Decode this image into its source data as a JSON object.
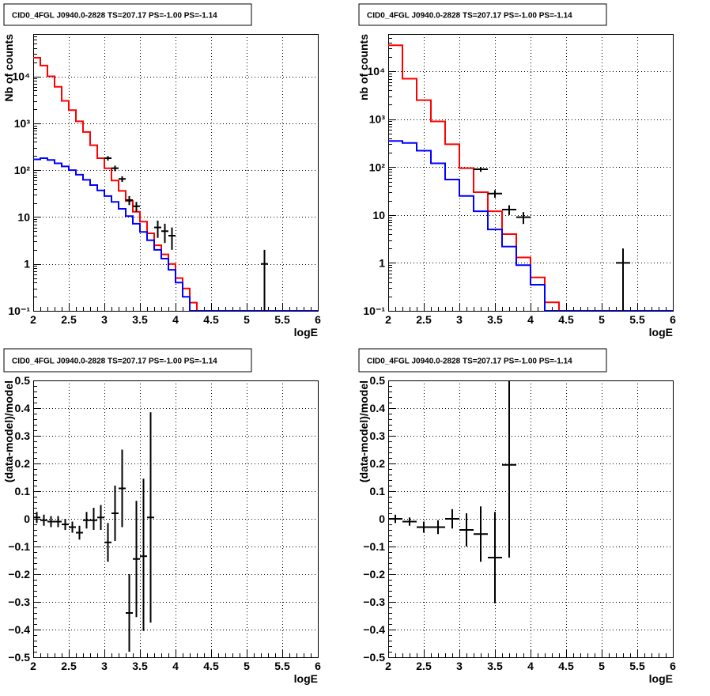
{
  "chart_data": [
    {
      "type": "line",
      "title": "CID0_4FGL J0940.0-2828 TS=207.17 PS=-1.00 PS=-1.14",
      "xlabel": "logE",
      "ylabel": "Nb of counts",
      "xlim": [
        2,
        6
      ],
      "ylim": [
        0.1,
        80000
      ],
      "log_y": true,
      "grid": true,
      "x_ticks": [
        "2",
        "2.5",
        "3",
        "3.5",
        "4",
        "4.5",
        "5",
        "5.5",
        "6"
      ],
      "y_ticks": [
        "10⁻¹",
        "1",
        "10",
        "10²",
        "10³",
        "10⁴"
      ],
      "bin_edges": [
        2.0,
        2.1,
        2.2,
        2.3,
        2.4,
        2.5,
        2.6,
        2.7,
        2.8,
        2.9,
        3.0,
        3.1,
        3.2,
        3.3,
        3.4,
        3.5,
        3.6,
        3.7,
        3.8,
        3.9,
        4.0,
        4.1,
        4.2,
        4.3,
        4.4,
        4.5,
        4.6,
        4.7,
        4.8,
        4.9,
        5.0,
        5.1,
        5.2,
        5.3,
        5.4,
        5.5,
        5.6,
        5.7,
        5.8,
        5.9,
        6.0
      ],
      "series": [
        {
          "color": "#ff0000",
          "values": [
            25000,
            17000,
            10000,
            6000,
            3000,
            1900,
            1100,
            650,
            340,
            180,
            110,
            60,
            36,
            22,
            13,
            8,
            4.5,
            2.5,
            1.6,
            1.0,
            0.5,
            0.3,
            0.15,
            0.1,
            0.1,
            0.1,
            0.1,
            0.1,
            0.1,
            0.1,
            0.1,
            0.1,
            0.1,
            0.1,
            0.1,
            0.1,
            0.1,
            0.1,
            0.1,
            0.1
          ]
        },
        {
          "color": "#0000ff",
          "values": [
            170,
            180,
            165,
            140,
            120,
            100,
            80,
            62,
            48,
            37,
            28,
            21,
            15,
            10.5,
            7.2,
            4.8,
            3.2,
            2.0,
            1.3,
            0.75,
            0.4,
            0.2,
            0.1,
            0.1,
            0.1,
            0.1,
            0.1,
            0.1,
            0.1,
            0.1,
            0.1,
            0.1,
            0.1,
            0.1,
            0.1,
            0.1,
            0.1,
            0.1,
            0.1,
            0.1
          ]
        }
      ],
      "points": [
        {
          "x": 3.05,
          "y": 180,
          "xerr": 0.05,
          "ylo": 160,
          "yhi": 200
        },
        {
          "x": 3.15,
          "y": 110,
          "xerr": 0.05,
          "ylo": 95,
          "yhi": 125
        },
        {
          "x": 3.25,
          "y": 65,
          "xerr": 0.05,
          "ylo": 56,
          "yhi": 74
        },
        {
          "x": 3.35,
          "y": 23,
          "xerr": 0.05,
          "ylo": 18,
          "yhi": 28
        },
        {
          "x": 3.45,
          "y": 17,
          "xerr": 0.05,
          "ylo": 13,
          "yhi": 21
        },
        {
          "x": 3.75,
          "y": 6,
          "xerr": 0.05,
          "ylo": 3.6,
          "yhi": 8.4
        },
        {
          "x": 3.85,
          "y": 5,
          "xerr": 0.05,
          "ylo": 2.8,
          "yhi": 7.2
        },
        {
          "x": 3.95,
          "y": 4,
          "xerr": 0.05,
          "ylo": 2.0,
          "yhi": 6.0
        },
        {
          "x": 5.25,
          "y": 1,
          "xerr": 0.05,
          "ylo": 0.1,
          "yhi": 2.0
        }
      ]
    },
    {
      "type": "line",
      "title": "CID0_4FGL J0940.0-2828 TS=207.17 PS=-1.00 PS=-1.14",
      "xlabel": "logE",
      "ylabel": "nb of counts",
      "xlim": [
        2,
        6
      ],
      "ylim": [
        0.1,
        60000
      ],
      "log_y": true,
      "grid": true,
      "x_ticks": [
        "2",
        "2.5",
        "3",
        "3.5",
        "4",
        "4.5",
        "5",
        "5.5",
        "6"
      ],
      "y_ticks": [
        "10⁻¹",
        "1",
        "10",
        "10²",
        "10³",
        "10⁴"
      ],
      "bin_edges": [
        2.0,
        2.2,
        2.4,
        2.6,
        2.8,
        3.0,
        3.2,
        3.4,
        3.6,
        3.8,
        4.0,
        4.2,
        4.4,
        4.6,
        4.8,
        5.0,
        5.2,
        5.4,
        5.6,
        5.8,
        6.0
      ],
      "series": [
        {
          "color": "#ff0000",
          "values": [
            35000,
            7000,
            2500,
            900,
            300,
            95,
            30,
            12,
            4.0,
            1.3,
            0.5,
            0.15,
            0.1,
            0.1,
            0.1,
            0.1,
            0.1,
            0.1,
            0.1,
            0.1
          ]
        },
        {
          "color": "#0000ff",
          "values": [
            350,
            320,
            220,
            120,
            55,
            25,
            12,
            5.0,
            2.2,
            0.9,
            0.35,
            0.1,
            0.1,
            0.1,
            0.1,
            0.1,
            0.1,
            0.1,
            0.1,
            0.1
          ]
        }
      ],
      "points": [
        {
          "x": 3.3,
          "y": 90,
          "xerr": 0.1,
          "ylo": 80,
          "yhi": 100
        },
        {
          "x": 3.5,
          "y": 28,
          "xerr": 0.1,
          "ylo": 23,
          "yhi": 33
        },
        {
          "x": 3.7,
          "y": 13,
          "xerr": 0.1,
          "ylo": 10,
          "yhi": 16
        },
        {
          "x": 3.9,
          "y": 9,
          "xerr": 0.1,
          "ylo": 6.5,
          "yhi": 11.5
        },
        {
          "x": 5.3,
          "y": 1,
          "xerr": 0.1,
          "ylo": 0.1,
          "yhi": 2.0
        }
      ]
    },
    {
      "type": "scatter",
      "title": "CID0_4FGL J0940.0-2828 TS=207.17 PS=-1.00 PS=-1.14",
      "xlabel": "logE",
      "ylabel": "(data-model)/model",
      "xlim": [
        2,
        6
      ],
      "ylim": [
        -0.5,
        0.5
      ],
      "log_y": false,
      "grid": true,
      "x_ticks": [
        "2",
        "2.5",
        "3",
        "3.5",
        "4",
        "4.5",
        "5",
        "5.5",
        "6"
      ],
      "y_ticks": [
        "−0.5",
        "−0.4",
        "−0.3",
        "−0.2",
        "−0.1",
        "0",
        "0.1",
        "0.2",
        "0.3",
        "0.4",
        "0.5"
      ],
      "points": [
        {
          "x": 2.05,
          "y": 0.005,
          "xerr": 0.05,
          "ylo": -0.015,
          "yhi": 0.025
        },
        {
          "x": 2.15,
          "y": -0.005,
          "xerr": 0.05,
          "ylo": -0.025,
          "yhi": 0.015
        },
        {
          "x": 2.25,
          "y": -0.01,
          "xerr": 0.05,
          "ylo": -0.03,
          "yhi": 0.01
        },
        {
          "x": 2.35,
          "y": -0.01,
          "xerr": 0.05,
          "ylo": -0.03,
          "yhi": 0.01
        },
        {
          "x": 2.45,
          "y": -0.02,
          "xerr": 0.05,
          "ylo": -0.04,
          "yhi": 0.0
        },
        {
          "x": 2.55,
          "y": -0.03,
          "xerr": 0.05,
          "ylo": -0.05,
          "yhi": -0.01
        },
        {
          "x": 2.65,
          "y": -0.05,
          "xerr": 0.05,
          "ylo": -0.075,
          "yhi": -0.025
        },
        {
          "x": 2.75,
          "y": -0.005,
          "xerr": 0.05,
          "ylo": -0.035,
          "yhi": 0.025
        },
        {
          "x": 2.85,
          "y": -0.005,
          "xerr": 0.05,
          "ylo": -0.04,
          "yhi": 0.04
        },
        {
          "x": 2.95,
          "y": 0.005,
          "xerr": 0.05,
          "ylo": -0.04,
          "yhi": 0.05
        },
        {
          "x": 3.05,
          "y": -0.085,
          "xerr": 0.05,
          "ylo": -0.155,
          "yhi": -0.015
        },
        {
          "x": 3.15,
          "y": 0.02,
          "xerr": 0.05,
          "ylo": -0.08,
          "yhi": 0.12
        },
        {
          "x": 3.25,
          "y": 0.11,
          "xerr": 0.05,
          "ylo": -0.03,
          "yhi": 0.25
        },
        {
          "x": 3.35,
          "y": -0.34,
          "xerr": 0.05,
          "ylo": -0.48,
          "yhi": -0.2
        },
        {
          "x": 3.45,
          "y": -0.145,
          "xerr": 0.05,
          "ylo": -0.355,
          "yhi": 0.065
        },
        {
          "x": 3.55,
          "y": -0.135,
          "xerr": 0.05,
          "ylo": -0.405,
          "yhi": 0.145
        },
        {
          "x": 3.65,
          "y": 0.005,
          "xerr": 0.05,
          "ylo": -0.375,
          "yhi": 0.385
        }
      ]
    },
    {
      "type": "scatter",
      "title": "CID0_4FGL J0940.0-2828 TS=207.17 PS=-1.00 PS=-1.14",
      "xlabel": "logE",
      "ylabel": "(data-model)/model",
      "xlim": [
        2,
        6
      ],
      "ylim": [
        -0.5,
        0.5
      ],
      "log_y": false,
      "grid": true,
      "x_ticks": [
        "2",
        "2.5",
        "3",
        "3.5",
        "4",
        "4.5",
        "5",
        "5.5",
        "6"
      ],
      "y_ticks": [
        "−0.5",
        "−0.4",
        "−0.3",
        "−0.2",
        "−0.1",
        "0",
        "0.1",
        "0.2",
        "0.3",
        "0.4",
        "0.5"
      ],
      "points": [
        {
          "x": 2.1,
          "y": 0.0,
          "xerr": 0.1,
          "ylo": -0.015,
          "yhi": 0.015
        },
        {
          "x": 2.3,
          "y": -0.01,
          "xerr": 0.1,
          "ylo": -0.025,
          "yhi": 0.005
        },
        {
          "x": 2.5,
          "y": -0.03,
          "xerr": 0.1,
          "ylo": -0.05,
          "yhi": -0.01
        },
        {
          "x": 2.7,
          "y": -0.03,
          "xerr": 0.1,
          "ylo": -0.055,
          "yhi": -0.005
        },
        {
          "x": 2.9,
          "y": 0.0,
          "xerr": 0.1,
          "ylo": -0.035,
          "yhi": 0.035
        },
        {
          "x": 3.1,
          "y": -0.04,
          "xerr": 0.1,
          "ylo": -0.1,
          "yhi": 0.02
        },
        {
          "x": 3.3,
          "y": -0.055,
          "xerr": 0.1,
          "ylo": -0.155,
          "yhi": 0.045
        },
        {
          "x": 3.5,
          "y": -0.14,
          "xerr": 0.1,
          "ylo": -0.305,
          "yhi": 0.025
        },
        {
          "x": 3.7,
          "y": 0.195,
          "xerr": 0.1,
          "ylo": -0.14,
          "yhi": 0.5
        }
      ]
    }
  ]
}
